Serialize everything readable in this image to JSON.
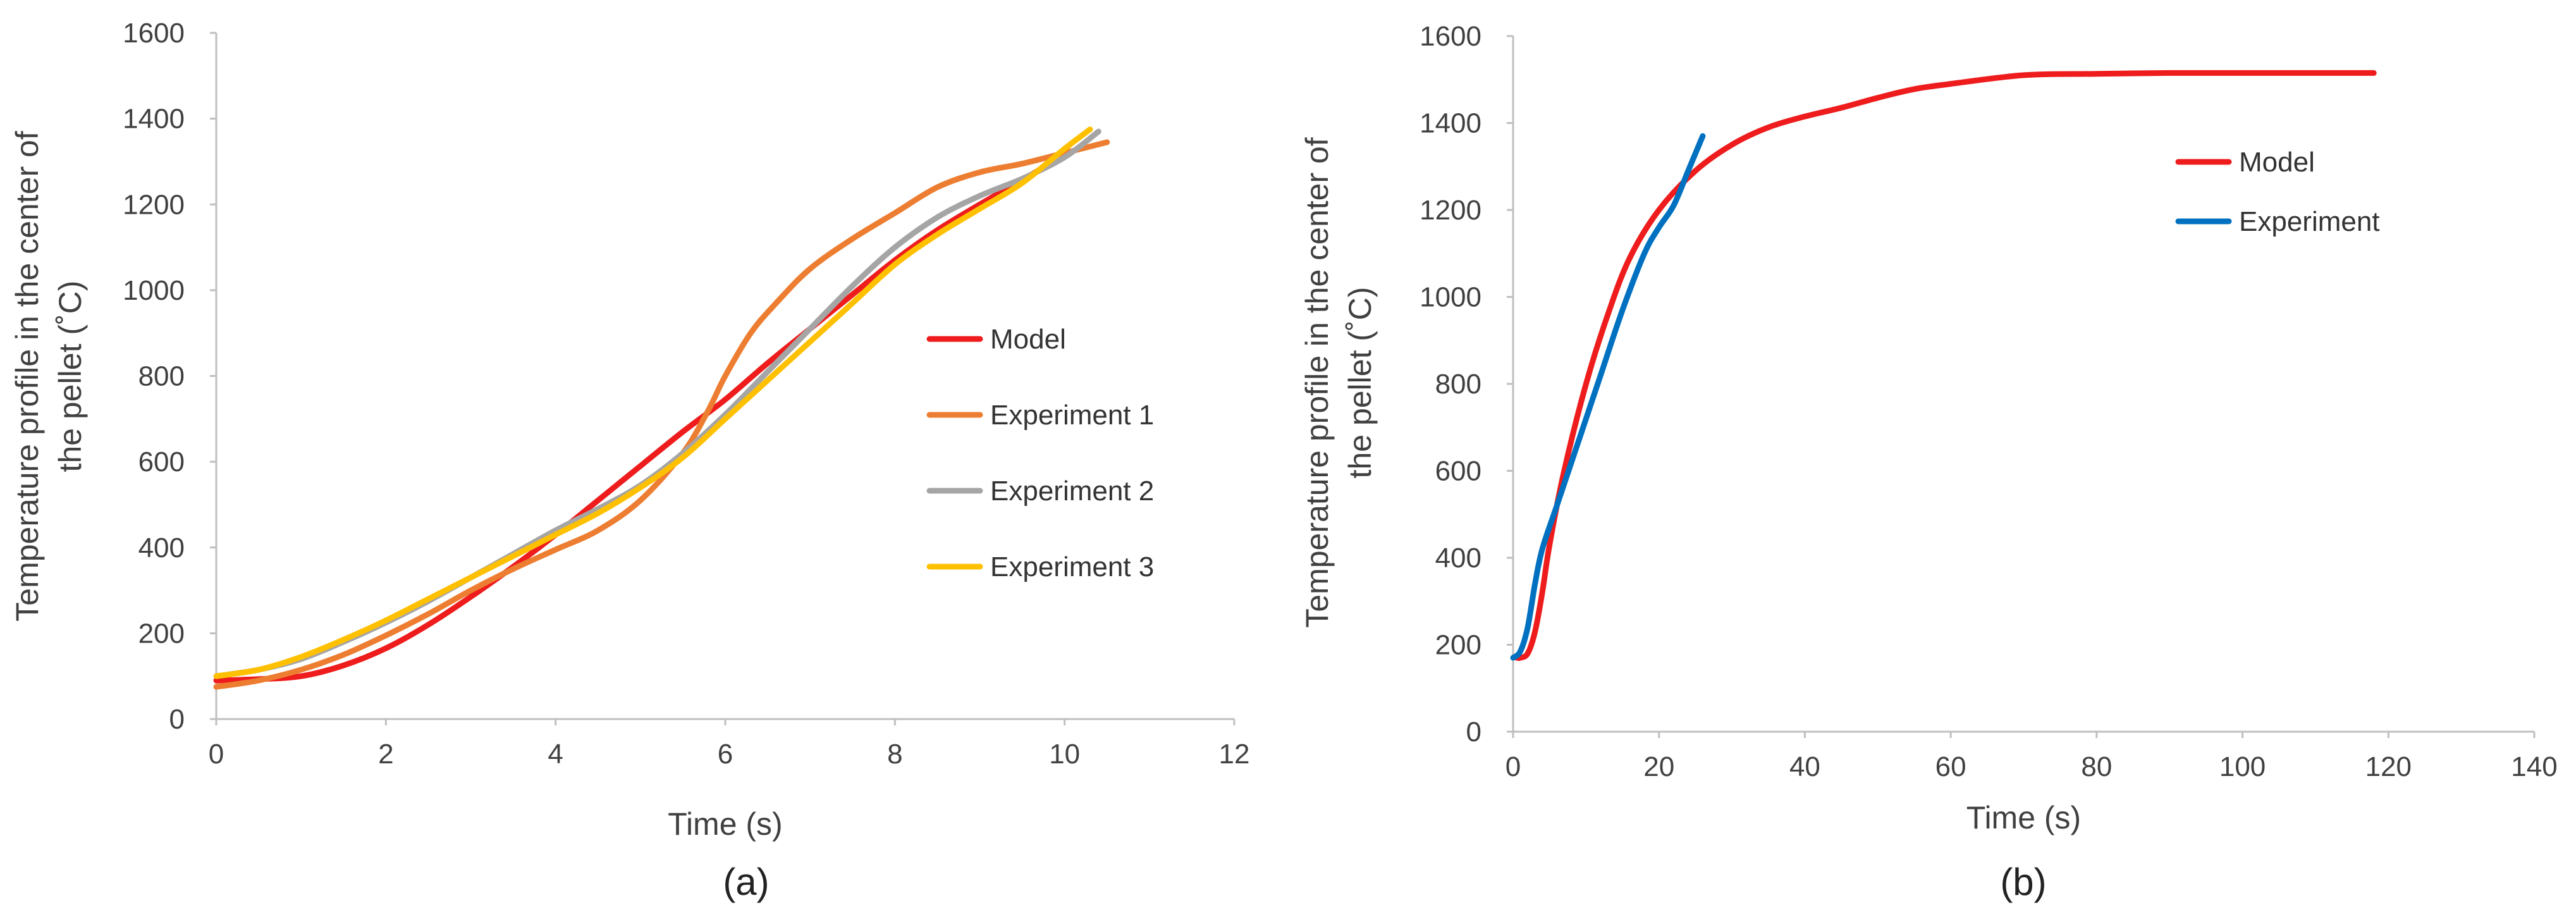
{
  "chart_data": [
    {
      "type": "line",
      "panel_label": "(a)",
      "xlabel": "Time (s)",
      "ylabel_lines": [
        "Temperature profile in the center of",
        "the pellet (˚C)"
      ],
      "xlim": [
        0,
        12
      ],
      "ylim": [
        0,
        1600
      ],
      "x_ticks": [
        "0",
        "2",
        "4",
        "6",
        "8",
        "10",
        "12"
      ],
      "y_ticks": [
        "0",
        "200",
        "400",
        "600",
        "800",
        "1000",
        "1200",
        "1400",
        "1600"
      ],
      "grid": false,
      "legend_position": "right",
      "series": [
        {
          "name": "Model",
          "color": "#ee1c1c",
          "x": [
            0,
            0.5,
            1,
            1.5,
            2,
            2.5,
            3,
            3.5,
            4,
            4.5,
            5,
            5.5,
            6,
            6.5,
            7,
            7.5,
            8,
            8.5,
            9,
            9.7
          ],
          "y": [
            90,
            93,
            100,
            125,
            165,
            220,
            285,
            355,
            430,
            510,
            590,
            670,
            745,
            830,
            910,
            990,
            1070,
            1140,
            1200,
            1280
          ]
        },
        {
          "name": "Experiment 1",
          "color": "#ed7d31",
          "x": [
            0,
            0.5,
            1,
            1.5,
            2,
            2.5,
            3,
            3.5,
            4,
            4.5,
            5,
            5.5,
            5.8,
            6,
            6.3,
            6.6,
            7,
            7.5,
            8,
            8.5,
            9,
            9.5,
            10,
            10.5
          ],
          "y": [
            75,
            90,
            115,
            150,
            195,
            245,
            300,
            350,
            395,
            440,
            510,
            620,
            720,
            800,
            900,
            970,
            1050,
            1120,
            1180,
            1240,
            1275,
            1295,
            1320,
            1345
          ]
        },
        {
          "name": "Experiment 2",
          "color": "#a5a5a5",
          "x": [
            0,
            0.5,
            1,
            1.5,
            2,
            2.5,
            3,
            3.5,
            4,
            4.5,
            5,
            5.5,
            6,
            6.5,
            7,
            7.5,
            8,
            8.5,
            9,
            9.5,
            10,
            10.4
          ],
          "y": [
            100,
            115,
            140,
            180,
            225,
            275,
            330,
            385,
            440,
            490,
            545,
            620,
            710,
            810,
            910,
            1010,
            1100,
            1170,
            1220,
            1260,
            1310,
            1370
          ]
        },
        {
          "name": "Experiment 3",
          "color": "#ffc000",
          "x": [
            0,
            0.5,
            1,
            1.5,
            2,
            2.5,
            3,
            3.5,
            4,
            4.5,
            5,
            5.5,
            6,
            6.5,
            7,
            7.5,
            8,
            8.5,
            9,
            9.5,
            10,
            10.3
          ],
          "y": [
            100,
            115,
            145,
            185,
            230,
            280,
            330,
            380,
            430,
            480,
            540,
            610,
            700,
            790,
            880,
            970,
            1060,
            1130,
            1190,
            1250,
            1330,
            1375
          ]
        }
      ]
    },
    {
      "type": "line",
      "panel_label": "(b)",
      "xlabel": "Time (s)",
      "ylabel_lines": [
        "Temperature profile in the center of",
        "the pellet (˚C)"
      ],
      "xlim": [
        0,
        140
      ],
      "ylim": [
        0,
        1600
      ],
      "x_ticks": [
        "0",
        "20",
        "40",
        "60",
        "80",
        "100",
        "120",
        "140"
      ],
      "y_ticks": [
        "0",
        "200",
        "400",
        "600",
        "800",
        "1000",
        "1200",
        "1400",
        "1600"
      ],
      "grid": false,
      "legend_position": "top-right",
      "series": [
        {
          "name": "Model",
          "color": "#ee1c1c",
          "x": [
            0.5,
            1,
            2,
            3,
            4,
            5,
            7,
            10,
            13,
            16,
            20,
            25,
            30,
            35,
            40,
            45,
            50,
            55,
            60,
            70,
            80,
            90,
            100,
            110,
            118
          ],
          "y": [
            170,
            170,
            180,
            230,
            320,
            430,
            600,
            800,
            960,
            1090,
            1200,
            1290,
            1350,
            1390,
            1415,
            1435,
            1458,
            1478,
            1490,
            1510,
            1513,
            1515,
            1515,
            1515,
            1515
          ]
        },
        {
          "name": "Experiment",
          "color": "#0070c0",
          "x": [
            0,
            1,
            2,
            3,
            4,
            6,
            8,
            10,
            12,
            15,
            18,
            20,
            22,
            24,
            26
          ],
          "y": [
            170,
            185,
            240,
            340,
            420,
            520,
            620,
            720,
            820,
            970,
            1100,
            1160,
            1210,
            1290,
            1370
          ]
        }
      ]
    }
  ]
}
